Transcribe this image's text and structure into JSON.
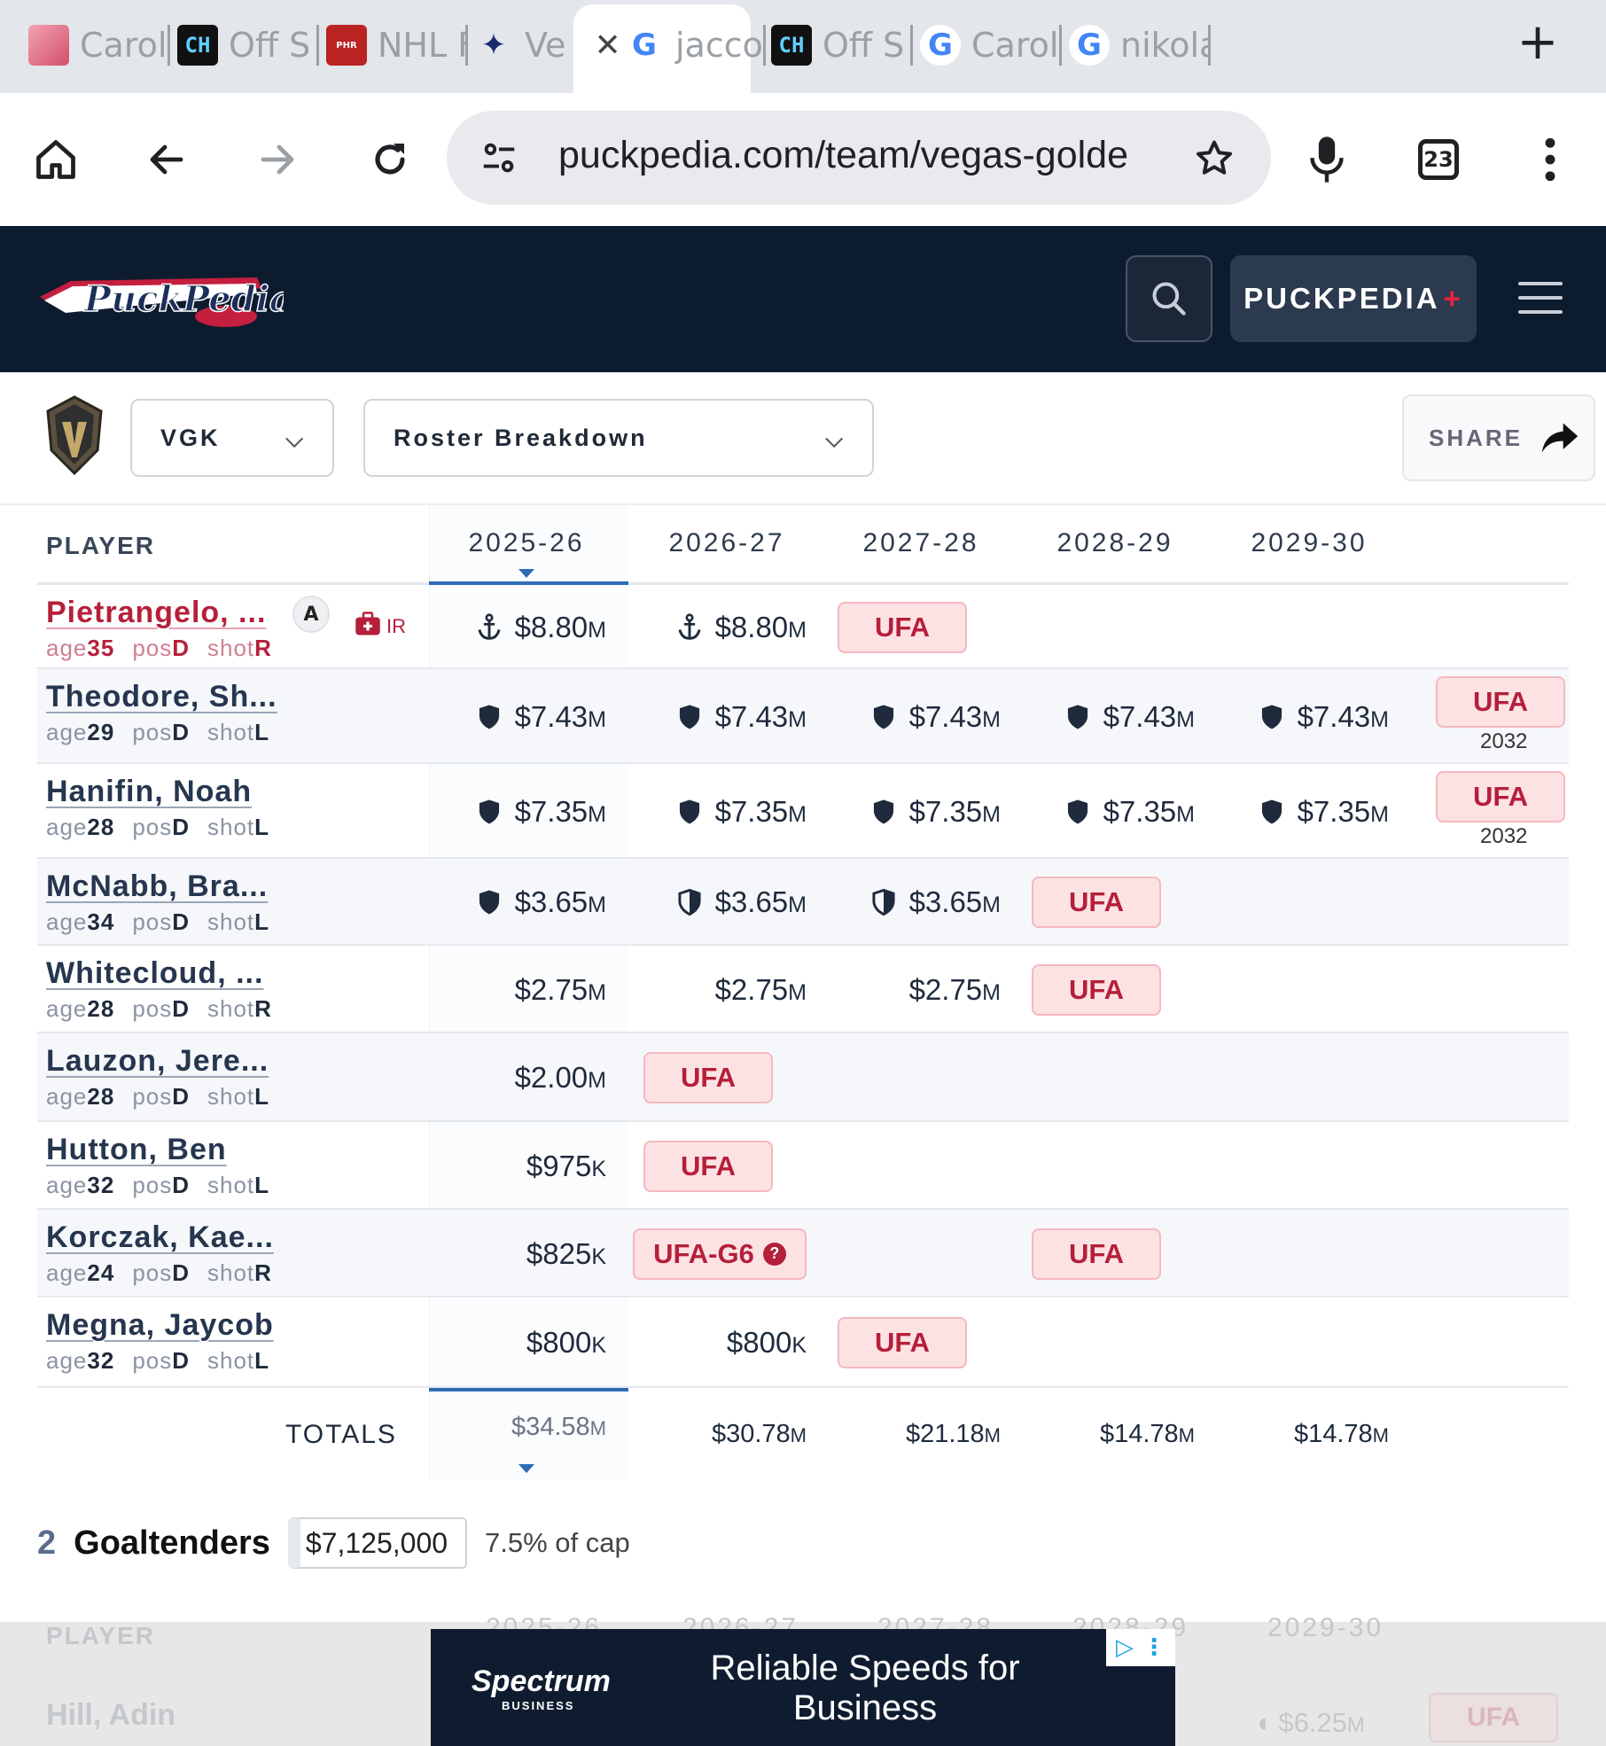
{
  "browser": {
    "tabs": [
      {
        "label": "Carol",
        "icon": "carolina-favicon"
      },
      {
        "label": "Off S",
        "icon": "capfriendly-favicon"
      },
      {
        "label": "NHL F",
        "icon": "prohockeyrumors-favicon"
      },
      {
        "label": "Ve",
        "icon": "vegas-favicon",
        "active": true
      },
      {
        "label": "jacco",
        "icon": "google-favicon"
      },
      {
        "label": "Off S",
        "icon": "capfriendly-favicon"
      },
      {
        "label": "Carol",
        "icon": "google-favicon"
      },
      {
        "label": "nikola",
        "icon": "google-favicon"
      }
    ],
    "url": "puckpedia.com/team/vegas-golde",
    "tab_count": "23"
  },
  "site": {
    "logo_text": "PuckPedia",
    "plus_label": "PUCKPEDIA",
    "plus_mark": "+"
  },
  "controls": {
    "team": "VGK",
    "view": "Roster Breakdown",
    "share": "SHARE"
  },
  "table": {
    "player_header": "PLAYER",
    "years": [
      "2025-26",
      "2026-27",
      "2027-28",
      "2028-29",
      "2029-30"
    ],
    "players": [
      {
        "name": "Pietrangelo, ...",
        "age": "35",
        "pos": "D",
        "shot": "R",
        "captain": "A",
        "ir": "IR",
        "cells": [
          {
            "icon": "anchor",
            "v": "$8.80",
            "u": "M"
          },
          {
            "icon": "anchor",
            "v": "$8.80",
            "u": "M"
          },
          {
            "ufa": "UFA"
          }
        ]
      },
      {
        "name": "Theodore, Sh...",
        "age": "29",
        "pos": "D",
        "shot": "L",
        "cells": [
          {
            "icon": "shield",
            "v": "$7.43",
            "u": "M"
          },
          {
            "icon": "shield",
            "v": "$7.43",
            "u": "M"
          },
          {
            "icon": "shield",
            "v": "$7.43",
            "u": "M"
          },
          {
            "icon": "shield",
            "v": "$7.43",
            "u": "M"
          },
          {
            "icon": "shield",
            "v": "$7.43",
            "u": "M"
          },
          {
            "ufa": "UFA",
            "year": "2032"
          }
        ]
      },
      {
        "name": "Hanifin, Noah",
        "age": "28",
        "pos": "D",
        "shot": "L",
        "cells": [
          {
            "icon": "shield",
            "v": "$7.35",
            "u": "M"
          },
          {
            "icon": "shield",
            "v": "$7.35",
            "u": "M"
          },
          {
            "icon": "shield",
            "v": "$7.35",
            "u": "M"
          },
          {
            "icon": "shield",
            "v": "$7.35",
            "u": "M"
          },
          {
            "icon": "shield",
            "v": "$7.35",
            "u": "M"
          },
          {
            "ufa": "UFA",
            "year": "2032"
          }
        ]
      },
      {
        "name": "McNabb, Bra...",
        "age": "34",
        "pos": "D",
        "shot": "L",
        "cells": [
          {
            "icon": "shield",
            "v": "$3.65",
            "u": "M"
          },
          {
            "icon": "half-shield",
            "v": "$3.65",
            "u": "M"
          },
          {
            "icon": "half-shield",
            "v": "$3.65",
            "u": "M"
          },
          {
            "ufa": "UFA"
          }
        ]
      },
      {
        "name": "Whitecloud, ...",
        "age": "28",
        "pos": "D",
        "shot": "R",
        "cells": [
          {
            "v": "$2.75",
            "u": "M"
          },
          {
            "v": "$2.75",
            "u": "M"
          },
          {
            "v": "$2.75",
            "u": "M"
          },
          {
            "ufa": "UFA"
          }
        ]
      },
      {
        "name": "Lauzon, Jere...",
        "age": "28",
        "pos": "D",
        "shot": "L",
        "cells": [
          {
            "v": "$2.00",
            "u": "M"
          },
          {
            "ufa": "UFA"
          }
        ]
      },
      {
        "name": "Hutton, Ben",
        "age": "32",
        "pos": "D",
        "shot": "L",
        "cells": [
          {
            "v": "$975",
            "u": "K"
          },
          {
            "ufa": "UFA"
          }
        ]
      },
      {
        "name": "Korczak, Kae...",
        "age": "24",
        "pos": "D",
        "shot": "R",
        "cells": [
          {
            "v": "$825",
            "u": "K"
          },
          {
            "ufa": "UFA-G6",
            "help": "?"
          },
          null,
          {
            "ufa": "UFA"
          }
        ]
      },
      {
        "name": "Megna, Jaycob",
        "age": "32",
        "pos": "D",
        "shot": "L",
        "cells": [
          {
            "v": "$800",
            "u": "K"
          },
          {
            "v": "$800",
            "u": "K"
          },
          {
            "ufa": "UFA"
          }
        ]
      }
    ],
    "meta_labels": {
      "age": "age",
      "pos": "pos",
      "shot": "shot"
    },
    "totals_label": "TOTALS",
    "totals": [
      {
        "v": "$34.58",
        "u": "M"
      },
      {
        "v": "$30.78",
        "u": "M"
      },
      {
        "v": "$21.18",
        "u": "M"
      },
      {
        "v": "$14.78",
        "u": "M"
      },
      {
        "v": "$14.78",
        "u": "M"
      }
    ]
  },
  "goaltenders": {
    "count": "2",
    "title": "Goaltenders",
    "cap_hit": "$7,125,000",
    "cap_pct": "7.5% of cap",
    "peek_header": "PLAYER",
    "peek_years": [
      "2025-26",
      "2026-27",
      "2027-28",
      "2028-29",
      "2029-30"
    ],
    "peek_player": "Hill, Adin",
    "peek_value": "$6.25",
    "peek_unit": "M",
    "peek_ufa": "UFA"
  },
  "ad": {
    "brand": "Spectrum",
    "brand_sub": "BUSINESS",
    "headline": "Reliable Speeds for Business"
  },
  "colors": {
    "header_bg": "#0d1b2e",
    "accent_red": "#b51f3a",
    "selected_blue": "#2d6cb5",
    "ufa_bg": "#fde2e4"
  }
}
